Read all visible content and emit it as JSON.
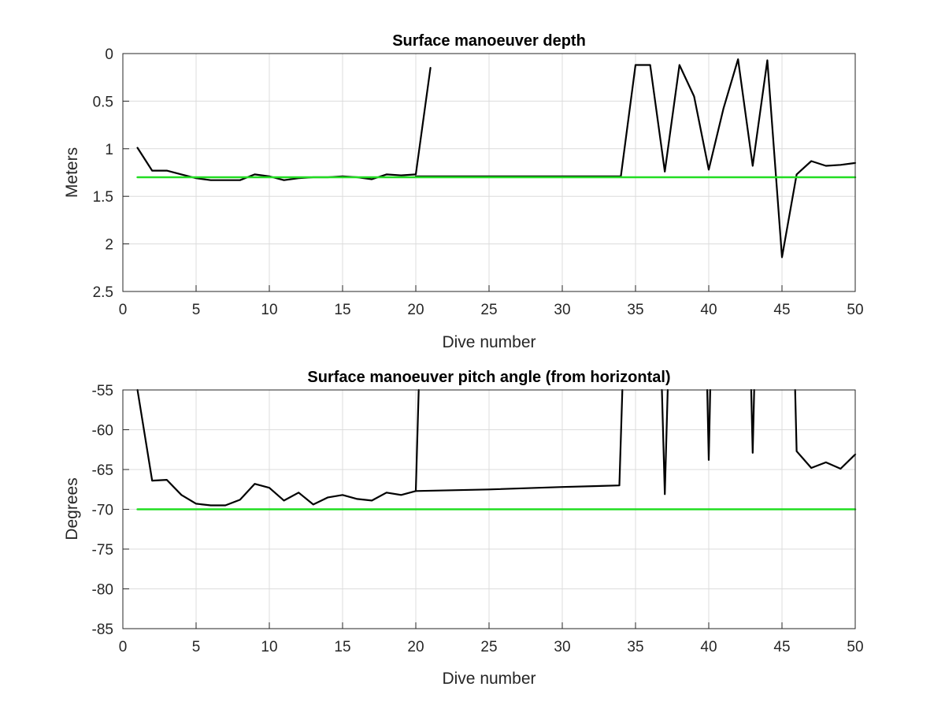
{
  "chart_data": [
    {
      "type": "line",
      "title": "Surface manoeuver depth",
      "xlabel": "Dive number",
      "ylabel": "Meters",
      "xlim": [
        0,
        50
      ],
      "ylim": [
        0,
        2.5
      ],
      "y_reversed": true,
      "grid": true,
      "xticks": [
        "0",
        "5",
        "10",
        "15",
        "20",
        "25",
        "30",
        "35",
        "40",
        "45",
        "50"
      ],
      "yticks": [
        "0",
        "0.5",
        "1",
        "1.5",
        "2",
        "2.5"
      ],
      "series": [
        {
          "color": "#000000",
          "x": [
            1,
            2,
            3,
            4,
            5,
            6,
            7,
            8,
            9,
            10,
            11,
            12,
            13,
            14,
            15,
            16,
            17,
            18,
            19,
            20,
            21
          ],
          "y": [
            0.99,
            1.23,
            1.23,
            1.27,
            1.31,
            1.33,
            1.33,
            1.33,
            1.27,
            1.29,
            1.33,
            1.31,
            1.3,
            1.3,
            1.29,
            1.3,
            1.32,
            1.27,
            1.28,
            1.27,
            0.15
          ]
        },
        {
          "color": "#000000",
          "x": [
            20,
            34,
            35,
            36,
            37,
            38,
            39,
            40,
            41,
            42,
            43,
            44,
            45,
            46,
            47,
            48,
            49,
            50
          ],
          "y": [
            1.29,
            1.29,
            0.12,
            0.12,
            1.24,
            0.12,
            0.45,
            1.22,
            0.58,
            0.06,
            1.18,
            0.07,
            2.14,
            1.27,
            1.13,
            1.18,
            1.17,
            1.15
          ]
        },
        {
          "color": "#22dd22",
          "x": [
            1,
            50
          ],
          "y": [
            1.3,
            1.3
          ]
        }
      ]
    },
    {
      "type": "line",
      "title": "Surface manoeuver pitch angle (from horizontal)",
      "xlabel": "Dive number",
      "ylabel": "Degrees",
      "xlim": [
        0,
        50
      ],
      "ylim": [
        -85,
        -55
      ],
      "y_reversed": false,
      "grid": true,
      "xticks": [
        "0",
        "5",
        "10",
        "15",
        "20",
        "25",
        "30",
        "35",
        "40",
        "45",
        "50"
      ],
      "yticks": [
        "-55",
        "-60",
        "-65",
        "-70",
        "-75",
        "-80",
        "-85"
      ],
      "series": [
        {
          "color": "#000000",
          "x": [
            1,
            2,
            3,
            4,
            5,
            6,
            7,
            8,
            9,
            10,
            11,
            12,
            13,
            14,
            15,
            16,
            17,
            18,
            19,
            20,
            20.2
          ],
          "y": [
            -55,
            -66.4,
            -66.3,
            -68.2,
            -69.3,
            -69.5,
            -69.5,
            -68.8,
            -66.8,
            -67.3,
            -68.9,
            -67.9,
            -69.4,
            -68.5,
            -68.2,
            -68.7,
            -68.9,
            -67.9,
            -68.2,
            -67.7,
            -55
          ]
        },
        {
          "color": "#000000",
          "x": [
            20,
            25,
            30,
            33.9,
            34.1
          ],
          "y": [
            -67.7,
            -67.5,
            -67.2,
            -67.0,
            -55
          ]
        },
        {
          "color": "#000000",
          "x": [
            36.8,
            37,
            37.2
          ],
          "y": [
            -55,
            -68.1,
            -55
          ]
        },
        {
          "color": "#000000",
          "x": [
            39.9,
            40,
            40.1
          ],
          "y": [
            -55,
            -63.8,
            -55
          ]
        },
        {
          "color": "#000000",
          "x": [
            42.9,
            43,
            43.1
          ],
          "y": [
            -55,
            -62.9,
            -55
          ]
        },
        {
          "color": "#000000",
          "x": [
            45.9,
            46,
            47,
            48,
            49,
            50
          ],
          "y": [
            -55,
            -62.7,
            -64.8,
            -64.1,
            -64.9,
            -63.1
          ]
        },
        {
          "color": "#22dd22",
          "x": [
            1,
            50
          ],
          "y": [
            -70,
            -70
          ]
        }
      ]
    }
  ]
}
